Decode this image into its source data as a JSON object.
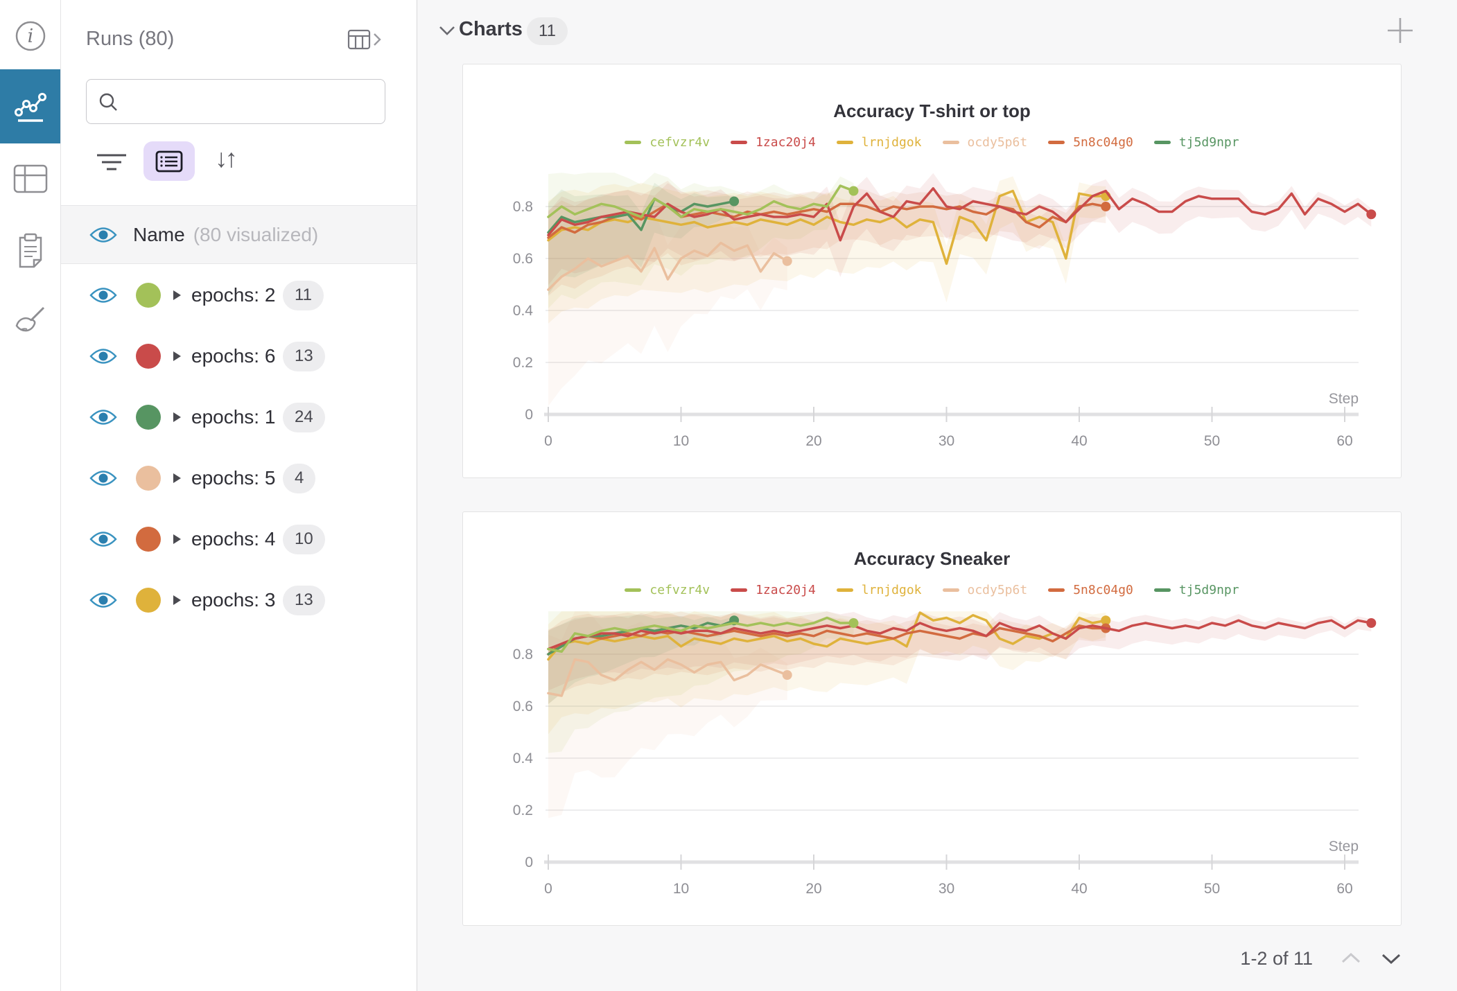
{
  "accent_color": "#2e7ca6",
  "icons": {
    "info": "circle-i",
    "panels": "line-chart",
    "table": "table-grid",
    "notes": "clipboard",
    "sweeps": "broom",
    "search": "magnifier",
    "filter": "filter-lines",
    "list_view": "list-box",
    "sort": "↓↑",
    "runs_table": "table-chevron",
    "section_chevron": "chevron-down",
    "add_panel": "plus",
    "eye": "eye",
    "caret": "triangle-right",
    "page_up": "chevron-up",
    "page_down": "chevron-down"
  },
  "runs_panel": {
    "title": "Runs (80)",
    "search": {
      "value": "",
      "placeholder": ""
    },
    "name_row": {
      "label": "Name",
      "note": "(80 visualized)"
    },
    "groups": [
      {
        "label": "epochs: 2",
        "count": "11",
        "color": "#a3c159"
      },
      {
        "label": "epochs: 6",
        "count": "13",
        "color": "#c94b4a"
      },
      {
        "label": "epochs: 1",
        "count": "24",
        "color": "#579562"
      },
      {
        "label": "epochs: 5",
        "count": "4",
        "color": "#eabf9e"
      },
      {
        "label": "epochs: 4",
        "count": "10",
        "color": "#d26b3f"
      },
      {
        "label": "epochs: 3",
        "count": "13",
        "color": "#dfb23b"
      }
    ]
  },
  "charts_section": {
    "title": "Charts",
    "count": "11",
    "pagination": {
      "label": "1-2 of 11"
    }
  },
  "chart_data": [
    {
      "type": "line",
      "title": "Accuracy T-shirt or top",
      "xlabel": "Step",
      "x_ticks": [
        0,
        10,
        20,
        30,
        40,
        50,
        60
      ],
      "y_ticks": [
        0,
        0.2,
        0.4,
        0.6,
        0.8
      ],
      "xlim": [
        0,
        63
      ],
      "ylim": [
        0,
        0.95
      ],
      "band_cap": 0.93,
      "grid": true,
      "legend_position": "top-center",
      "series": [
        {
          "name": "cefvzr4v",
          "color": "#a3c159",
          "spread_start": 0.22,
          "spread_end": 0.04,
          "values": [
            0.76,
            0.8,
            0.77,
            0.79,
            0.81,
            0.8,
            0.78,
            0.76,
            0.83,
            0.8,
            0.76,
            0.79,
            0.78,
            0.79,
            0.78,
            0.77,
            0.79,
            0.82,
            0.8,
            0.79,
            0.81,
            0.8,
            0.88,
            0.86
          ]
        },
        {
          "name": "1zac20j4",
          "color": "#c94b4a",
          "spread_start": 0.12,
          "spread_end": 0.03,
          "values": [
            0.69,
            0.75,
            0.73,
            0.74,
            0.76,
            0.77,
            0.78,
            0.77,
            0.76,
            0.81,
            0.78,
            0.76,
            0.77,
            0.79,
            0.75,
            0.76,
            0.77,
            0.76,
            0.76,
            0.77,
            0.76,
            0.81,
            0.67,
            0.8,
            0.85,
            0.78,
            0.76,
            0.82,
            0.81,
            0.87,
            0.8,
            0.79,
            0.82,
            0.81,
            0.8,
            0.78,
            0.77,
            0.8,
            0.78,
            0.74,
            0.79,
            0.84,
            0.86,
            0.79,
            0.83,
            0.81,
            0.78,
            0.78,
            0.82,
            0.84,
            0.83,
            0.83,
            0.83,
            0.78,
            0.77,
            0.79,
            0.85,
            0.77,
            0.83,
            0.81,
            0.78,
            0.81,
            0.77
          ]
        },
        {
          "name": "lrnjdgok",
          "color": "#dfb23b",
          "spread_start": 0.2,
          "spread_end": 0.05,
          "values": [
            0.67,
            0.71,
            0.72,
            0.71,
            0.74,
            0.75,
            0.74,
            0.76,
            0.75,
            0.74,
            0.73,
            0.74,
            0.72,
            0.73,
            0.74,
            0.73,
            0.75,
            0.74,
            0.73,
            0.75,
            0.73,
            0.76,
            0.74,
            0.73,
            0.75,
            0.74,
            0.76,
            0.72,
            0.75,
            0.74,
            0.58,
            0.76,
            0.74,
            0.67,
            0.84,
            0.86,
            0.74,
            0.76,
            0.74,
            0.6,
            0.85,
            0.84,
            0.84
          ]
        },
        {
          "name": "ocdy5p6t",
          "color": "#eabf9e",
          "spread_start": 0.28,
          "spread_end": 0.07,
          "values": [
            0.48,
            0.53,
            0.56,
            0.6,
            0.57,
            0.59,
            0.61,
            0.55,
            0.64,
            0.52,
            0.6,
            0.63,
            0.61,
            0.66,
            0.63,
            0.65,
            0.55,
            0.62,
            0.59
          ]
        },
        {
          "name": "5n8c04g0",
          "color": "#d26b3f",
          "spread_start": 0.14,
          "spread_end": 0.04,
          "values": [
            0.68,
            0.72,
            0.7,
            0.73,
            0.74,
            0.76,
            0.77,
            0.75,
            0.78,
            0.81,
            0.76,
            0.77,
            0.78,
            0.77,
            0.76,
            0.78,
            0.77,
            0.78,
            0.77,
            0.78,
            0.79,
            0.78,
            0.81,
            0.81,
            0.8,
            0.78,
            0.8,
            0.79,
            0.8,
            0.8,
            0.79,
            0.8,
            0.78,
            0.77,
            0.8,
            0.79,
            0.74,
            0.72,
            0.76,
            0.74,
            0.8,
            0.81,
            0.8
          ]
        },
        {
          "name": "tj5d9npr",
          "color": "#579562",
          "spread_start": 0.15,
          "spread_end": 0.03,
          "values": [
            0.7,
            0.76,
            0.74,
            0.75,
            0.76,
            0.76,
            0.77,
            0.71,
            0.83,
            0.8,
            0.78,
            0.81,
            0.8,
            0.81,
            0.82
          ]
        }
      ]
    },
    {
      "type": "line",
      "title": "Accuracy Sneaker",
      "xlabel": "Step",
      "x_ticks": [
        0,
        10,
        20,
        30,
        40,
        50,
        60
      ],
      "y_ticks": [
        0,
        0.2,
        0.4,
        0.6,
        0.8
      ],
      "xlim": [
        0,
        63
      ],
      "ylim": [
        0,
        0.98
      ],
      "band_cap": 0.965,
      "grid": true,
      "legend_position": "top-center",
      "series": [
        {
          "name": "cefvzr4v",
          "color": "#a3c159",
          "spread_start": 0.25,
          "spread_end": 0.03,
          "values": [
            0.82,
            0.81,
            0.88,
            0.87,
            0.89,
            0.9,
            0.89,
            0.9,
            0.91,
            0.9,
            0.89,
            0.91,
            0.9,
            0.91,
            0.92,
            0.91,
            0.92,
            0.91,
            0.92,
            0.91,
            0.92,
            0.94,
            0.92,
            0.92
          ]
        },
        {
          "name": "1zac20j4",
          "color": "#c94b4a",
          "spread_start": 0.1,
          "spread_end": 0.02,
          "values": [
            0.82,
            0.84,
            0.86,
            0.87,
            0.88,
            0.88,
            0.87,
            0.89,
            0.88,
            0.89,
            0.88,
            0.89,
            0.89,
            0.88,
            0.9,
            0.89,
            0.88,
            0.89,
            0.88,
            0.89,
            0.9,
            0.91,
            0.9,
            0.91,
            0.89,
            0.88,
            0.9,
            0.89,
            0.92,
            0.9,
            0.89,
            0.9,
            0.89,
            0.87,
            0.92,
            0.9,
            0.89,
            0.91,
            0.88,
            0.86,
            0.9,
            0.91,
            0.9,
            0.89,
            0.91,
            0.92,
            0.91,
            0.9,
            0.91,
            0.9,
            0.92,
            0.91,
            0.93,
            0.91,
            0.9,
            0.92,
            0.91,
            0.9,
            0.92,
            0.93,
            0.9,
            0.93,
            0.92
          ]
        },
        {
          "name": "lrnjdgok",
          "color": "#dfb23b",
          "spread_start": 0.18,
          "spread_end": 0.04,
          "values": [
            0.78,
            0.84,
            0.85,
            0.84,
            0.86,
            0.85,
            0.86,
            0.87,
            0.86,
            0.87,
            0.83,
            0.86,
            0.85,
            0.84,
            0.86,
            0.85,
            0.86,
            0.87,
            0.85,
            0.86,
            0.84,
            0.83,
            0.86,
            0.85,
            0.84,
            0.85,
            0.86,
            0.83,
            0.96,
            0.93,
            0.94,
            0.92,
            0.95,
            0.93,
            0.86,
            0.84,
            0.87,
            0.86,
            0.88,
            0.86,
            0.94,
            0.92,
            0.93
          ]
        },
        {
          "name": "ocdy5p6t",
          "color": "#eabf9e",
          "spread_start": 0.3,
          "spread_end": 0.06,
          "values": [
            0.65,
            0.64,
            0.78,
            0.77,
            0.72,
            0.7,
            0.74,
            0.77,
            0.74,
            0.78,
            0.76,
            0.73,
            0.76,
            0.77,
            0.7,
            0.72,
            0.76,
            0.74,
            0.72
          ]
        },
        {
          "name": "5n8c04g0",
          "color": "#d26b3f",
          "spread_start": 0.12,
          "spread_end": 0.03,
          "values": [
            0.8,
            0.84,
            0.86,
            0.87,
            0.86,
            0.87,
            0.88,
            0.87,
            0.89,
            0.88,
            0.89,
            0.88,
            0.87,
            0.88,
            0.89,
            0.88,
            0.87,
            0.88,
            0.87,
            0.88,
            0.87,
            0.89,
            0.88,
            0.87,
            0.88,
            0.87,
            0.86,
            0.88,
            0.89,
            0.88,
            0.87,
            0.86,
            0.88,
            0.87,
            0.9,
            0.89,
            0.88,
            0.87,
            0.85,
            0.88,
            0.91,
            0.9,
            0.9
          ]
        },
        {
          "name": "tj5d9npr",
          "color": "#579562",
          "spread_start": 0.12,
          "spread_end": 0.02,
          "values": [
            0.8,
            0.83,
            0.86,
            0.87,
            0.87,
            0.88,
            0.89,
            0.9,
            0.89,
            0.9,
            0.91,
            0.9,
            0.92,
            0.91,
            0.93
          ]
        }
      ]
    }
  ]
}
